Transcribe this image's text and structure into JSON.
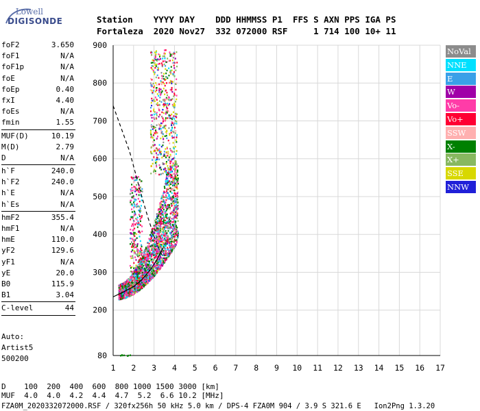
{
  "logo": {
    "line1": "Lowell",
    "line2": "DIGISONDE"
  },
  "header": {
    "labels": "Station    YYYY DAY    DDD HHMMSS P1  FFS S AXN PPS IGA PS",
    "values": "Fortaleza  2020 Nov27  332 072000 RSF     1 714 100 10+ 11"
  },
  "parameters": {
    "group1": [
      {
        "name": "foF2",
        "value": "3.650"
      },
      {
        "name": "foF1",
        "value": "N/A"
      },
      {
        "name": "foF1p",
        "value": "N/A"
      },
      {
        "name": "foE",
        "value": "N/A"
      },
      {
        "name": "foEp",
        "value": "0.40"
      },
      {
        "name": "fxI",
        "value": "4.40"
      },
      {
        "name": "foEs",
        "value": "N/A"
      },
      {
        "name": "fmin",
        "value": "1.55"
      }
    ],
    "group2": [
      {
        "name": "MUF(D)",
        "value": "10.19"
      },
      {
        "name": "M(D)",
        "value": "2.79"
      },
      {
        "name": "D",
        "value": "N/A"
      }
    ],
    "group3": [
      {
        "name": "h`F",
        "value": "240.0"
      },
      {
        "name": "h`F2",
        "value": "240.0"
      },
      {
        "name": "h`E",
        "value": "N/A"
      },
      {
        "name": "h`Es",
        "value": "N/A"
      }
    ],
    "group4": [
      {
        "name": "hmF2",
        "value": "355.4"
      },
      {
        "name": "hmF1",
        "value": "N/A"
      },
      {
        "name": "hmE",
        "value": "110.0"
      },
      {
        "name": "yF2",
        "value": "129.6"
      },
      {
        "name": "yF1",
        "value": "N/A"
      },
      {
        "name": "yE",
        "value": "20.0"
      },
      {
        "name": "B0",
        "value": "115.9"
      },
      {
        "name": "B1",
        "value": "3.04"
      }
    ],
    "group5": [
      {
        "name": "C-level",
        "value": "44"
      }
    ]
  },
  "auto": {
    "line1": "Auto:",
    "line2": "Artist5",
    "line3": "500200"
  },
  "legend": [
    {
      "label": "NoVal",
      "color": "#8c8c8c"
    },
    {
      "label": "NNE",
      "color": "#00e0ff"
    },
    {
      "label": "E",
      "color": "#3aa0e8"
    },
    {
      "label": "W",
      "color": "#a000a8"
    },
    {
      "label": "Vo-",
      "color": "#ff3ca8"
    },
    {
      "label": "Vo+",
      "color": "#ff0033"
    },
    {
      "label": "SSW",
      "color": "#ffb0b0"
    },
    {
      "label": "X-",
      "color": "#008000"
    },
    {
      "label": "X+",
      "color": "#88b860"
    },
    {
      "label": "SSE",
      "color": "#d8d800"
    },
    {
      "label": "NNW",
      "color": "#2020d8"
    }
  ],
  "footer": {
    "d_row": "D    100  200  400  600  800 1000 1500 3000 [km]",
    "muf_row": "MUF  4.0  4.0  4.2  4.4  4.7  5.2  6.6 10.2 [MHz]",
    "source": "FZA0M_2020332072000.RSF / 320fx256h 50 kHz 5.0 km / DPS-4 FZA0M 904 / 3.9 S 321.6 E   Ion2Png 1.3.20"
  },
  "chart_data": {
    "type": "scatter",
    "xlim": [
      1,
      17
    ],
    "ylim": [
      80,
      900
    ],
    "x_ticks": [
      1,
      2,
      3,
      4,
      5,
      6,
      7,
      8,
      9,
      10,
      11,
      12,
      13,
      14,
      15,
      16,
      17
    ],
    "y_ticks": [
      80,
      200,
      300,
      400,
      500,
      600,
      700,
      800,
      900
    ],
    "grid": true,
    "profile_curve": [
      [
        1.0,
        235
      ],
      [
        1.5,
        248
      ],
      [
        2.0,
        262
      ],
      [
        2.4,
        280
      ],
      [
        2.8,
        305
      ],
      [
        3.1,
        330
      ],
      [
        3.3,
        350
      ],
      [
        3.45,
        365
      ]
    ],
    "muf_curve": [
      [
        1.0,
        740
      ],
      [
        1.4,
        680
      ],
      [
        1.8,
        620
      ],
      [
        2.1,
        560
      ],
      [
        2.4,
        500
      ],
      [
        2.7,
        445
      ],
      [
        3.0,
        395
      ],
      [
        3.3,
        355
      ],
      [
        3.5,
        335
      ]
    ]
  }
}
